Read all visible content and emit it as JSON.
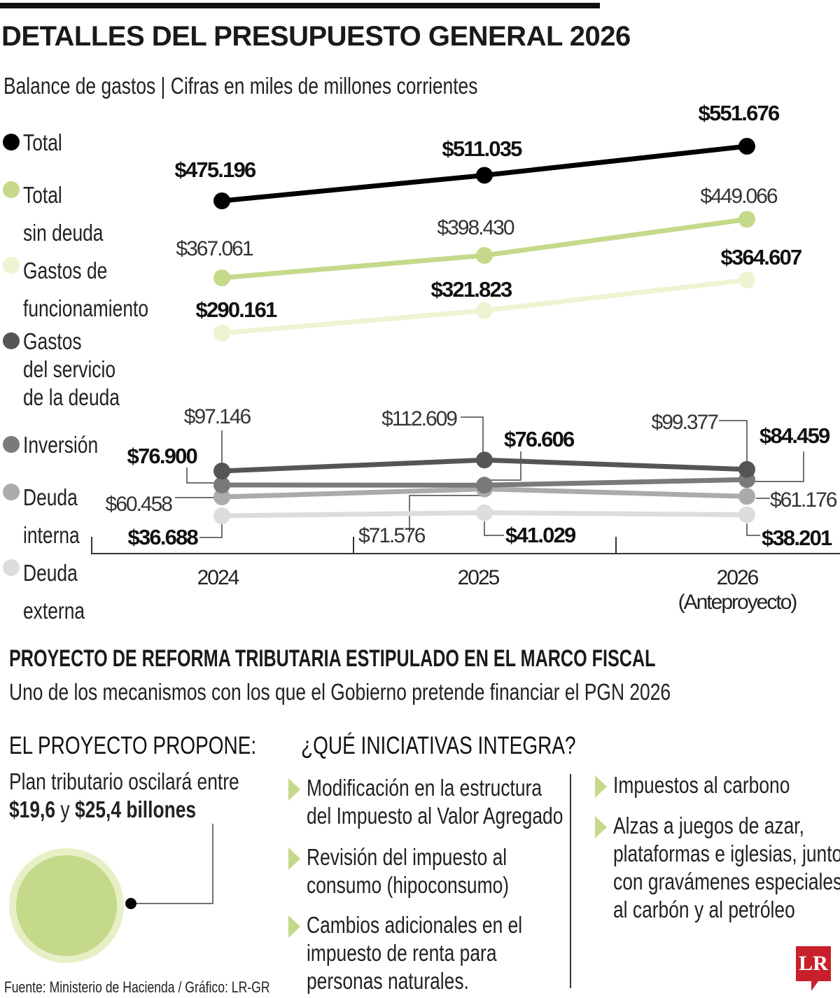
{
  "header": {
    "title": "DETALLES DEL PRESUPUESTO GENERAL 2026",
    "subtitle": "Balance de gastos | Cifras en miles de millones corrientes"
  },
  "chart_data": {
    "type": "line",
    "title": "DETALLES DEL PRESUPUESTO GENERAL 2026",
    "subtitle": "Balance de gastos | Cifras en miles de millones corrientes",
    "categories": [
      "2024",
      "2025",
      "2026"
    ],
    "category_note": "(Anteproyecto)",
    "legend_position": "left",
    "grid": false,
    "series": [
      {
        "name": "Total",
        "legend_lines": [
          "Total"
        ],
        "color": "#000000",
        "values": [
          475196,
          511035,
          551676
        ],
        "labels": [
          "$475.196",
          "$511.035",
          "$551.676"
        ],
        "bold": true
      },
      {
        "name": "Total sin deuda",
        "legend_lines": [
          "Total",
          "sin deuda"
        ],
        "color": "#c5d98a",
        "values": [
          367061,
          398430,
          449066
        ],
        "labels": [
          "$367.061",
          "$398.430",
          "$449.066"
        ],
        "bold": false
      },
      {
        "name": "Gastos de funcionamiento",
        "legend_lines": [
          "Gastos de",
          "funcionamiento"
        ],
        "color": "#eef3d2",
        "values": [
          290161,
          321823,
          364607
        ],
        "labels": [
          "$290.161",
          "$321.823",
          "$364.607"
        ],
        "bold": true
      },
      {
        "name": "Gastos del servicio de la deuda",
        "legend_lines": [
          "Gastos",
          "del servicio",
          "de la deuda"
        ],
        "color": "#555555",
        "values": [
          97146,
          112609,
          99377
        ],
        "labels": [
          "$97.146",
          "$112.609",
          "$99.377"
        ],
        "bold": false
      },
      {
        "name": "Inversión",
        "legend_lines": [
          "Inversión"
        ],
        "color": "#7a7a7a",
        "values": [
          76900,
          76606,
          84459
        ],
        "labels": [
          "$76.900",
          "$76.606",
          "$84.459"
        ],
        "bold": true
      },
      {
        "name": "Deuda interna",
        "legend_lines": [
          "Deuda",
          "interna"
        ],
        "color": "#ababab",
        "values": [
          60458,
          71576,
          61176
        ],
        "labels": [
          "$60.458",
          "$71.576",
          "$61.176"
        ],
        "bold": false
      },
      {
        "name": "Deuda externa",
        "legend_lines": [
          "Deuda",
          "externa"
        ],
        "color": "#dddddd",
        "values": [
          36688,
          41029,
          38201
        ],
        "labels": [
          "$36.688",
          "$41.029",
          "$38.201"
        ],
        "bold": true
      }
    ]
  },
  "reform": {
    "title": "PROYECTO DE REFORMA TRIBUTARIA ESTIPULADO EN EL MARCO FISCAL",
    "subtitle": "Uno de los mecanismos con los que el Gobierno pretende financiar el PGN 2026",
    "propone_heading": "EL PROYECTO PROPONE:",
    "propone_text": "Plan tributario oscilará entre",
    "amount_low": "$19,6",
    "amount_sep": " y ",
    "amount_high": "$25,4 billones",
    "circle_color": "#c5d98a",
    "initiatives_heading": "¿QUÉ INICIATIVAS INTEGRA?",
    "initiatives": [
      [
        "Modificación en la estructura",
        "del Impuesto al Valor Agregado"
      ],
      [
        "Revisión del impuesto al",
        "consumo (hipoconsumo)"
      ],
      [
        "Cambios adicionales en el",
        "impuesto de renta para",
        "personas naturales."
      ],
      [
        "Impuestos al carbono"
      ],
      [
        "Alzas a juegos de azar,",
        "plataformas e iglesias, junto",
        "con gravámenes especiales",
        "al carbón y al petróleo"
      ]
    ]
  },
  "footer": {
    "source": "Fuente: Ministerio de Hacienda / Gráfico: LR-GR",
    "logo": "LR"
  }
}
